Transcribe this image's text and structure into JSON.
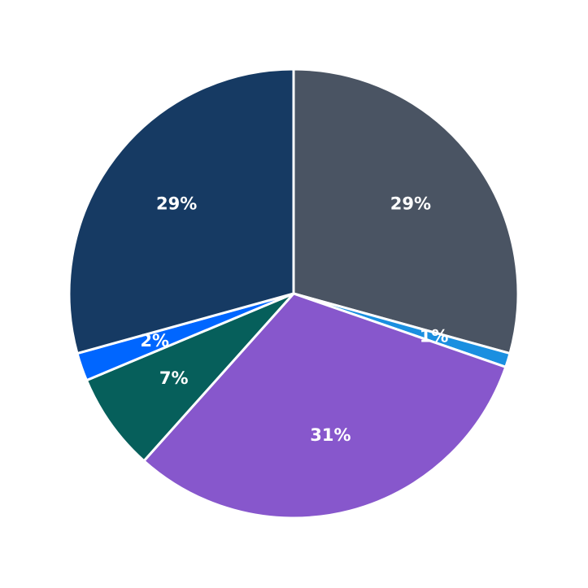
{
  "chart_data": {
    "type": "pie",
    "values": [
      29,
      1,
      31,
      7,
      2,
      29
    ],
    "value_labels": [
      "29%",
      "1%",
      "31%",
      "7%",
      "2%",
      "29%"
    ],
    "colors": [
      "#4a5463",
      "#1a8fe0",
      "#8757cc",
      "#065f5b",
      "#0066ff",
      "#163a63"
    ]
  }
}
